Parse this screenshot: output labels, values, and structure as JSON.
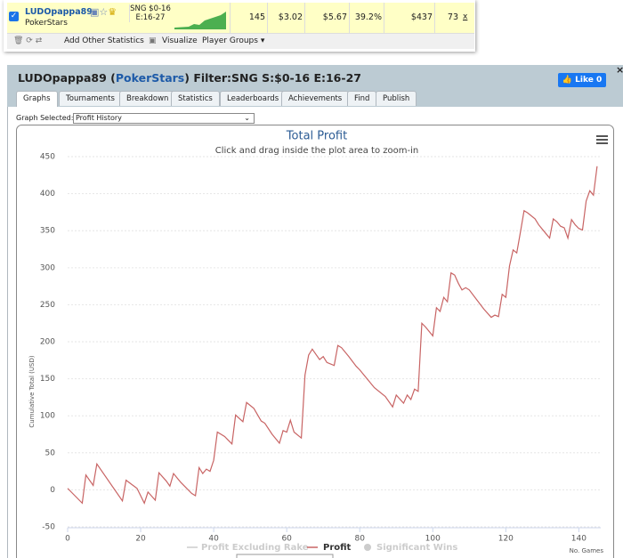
{
  "stats_row": {
    "player": "LUDOpappa89",
    "site": "PokerStars",
    "filter": "SNG $0-16 E:16-27",
    "cells": [
      "145",
      "$3.02",
      "$5.67",
      "39.2%",
      "$437",
      "73"
    ],
    "remove": "x"
  },
  "toolbar": [
    "Add Other Statistics",
    "Visualize",
    "Player Groups ▾"
  ],
  "panel": {
    "title": [
      "LUDOpappa89 (",
      "PokerStars",
      ") Filter:SNG S:$0-16 E:16-27"
    ],
    "like": "Like",
    "like_count": 0,
    "close": "×",
    "tabs": [
      "Graphs",
      "Tournaments",
      "Breakdown",
      "Statistics",
      "Leaderboards",
      "Achievements",
      "Find",
      "Publish"
    ],
    "graph_label": "Graph Selected:",
    "graph_selected": "Profit History"
  },
  "chart_data": {
    "type": "line",
    "title": "Total Profit",
    "subtitle": "Click and drag inside the plot area to zoom-in",
    "y_label": "Cumulative Total (USD)",
    "x_label": "No. Games",
    "xlim": [
      0,
      146
    ],
    "ylim": [
      -50,
      470
    ],
    "xticks": [
      0,
      20,
      40,
      60,
      80,
      100,
      120,
      140
    ],
    "yticks": [
      -50,
      0,
      50,
      100,
      150,
      200,
      250,
      300,
      350,
      400,
      450
    ],
    "grid": true,
    "x": [
      0,
      4,
      5,
      7,
      8,
      15,
      16,
      19,
      21,
      22,
      24,
      25,
      27,
      28,
      29,
      31,
      34,
      35,
      36,
      37,
      38,
      39,
      40,
      41,
      43,
      45,
      46,
      48,
      49,
      51,
      53,
      54,
      56,
      58,
      59,
      60,
      61,
      62,
      64,
      65,
      66,
      67,
      68,
      69,
      70,
      71,
      73,
      74,
      75,
      77,
      79,
      80,
      82,
      84,
      87,
      89,
      90,
      92,
      93,
      94,
      95,
      96,
      97,
      98,
      100,
      101,
      102,
      103,
      104,
      105,
      106,
      107,
      108,
      109,
      110,
      112,
      114,
      116,
      117,
      118,
      119,
      120,
      121,
      122,
      123,
      124,
      125,
      126,
      128,
      129,
      131,
      132,
      133,
      134,
      135,
      136,
      137,
      138,
      139,
      140,
      141,
      142,
      143,
      144,
      145
    ],
    "series": [
      {
        "name": "Profit",
        "color": "#c86464",
        "values": [
          2,
          -18,
          20,
          6,
          35,
          -15,
          13,
          2,
          -18,
          -3,
          -14,
          23,
          12,
          5,
          22,
          10,
          -5,
          -8,
          30,
          22,
          28,
          25,
          40,
          78,
          72,
          62,
          101,
          92,
          118,
          110,
          93,
          90,
          75,
          63,
          80,
          78,
          94,
          78,
          70,
          155,
          182,
          190,
          183,
          176,
          180,
          172,
          168,
          195,
          192,
          180,
          167,
          162,
          150,
          138,
          126,
          112,
          128,
          117,
          128,
          122,
          136,
          133,
          225,
          220,
          208,
          246,
          241,
          260,
          254,
          293,
          290,
          279,
          270,
          273,
          270,
          257,
          244,
          233,
          236,
          234,
          264,
          260,
          302,
          324,
          320,
          348,
          377,
          374,
          366,
          358,
          346,
          340,
          366,
          362,
          356,
          354,
          340,
          365,
          358,
          353,
          351,
          390,
          404,
          398,
          437
        ]
      }
    ],
    "hidden_series": [
      "Profit Excluding Rake",
      "Significant Wins"
    ]
  }
}
